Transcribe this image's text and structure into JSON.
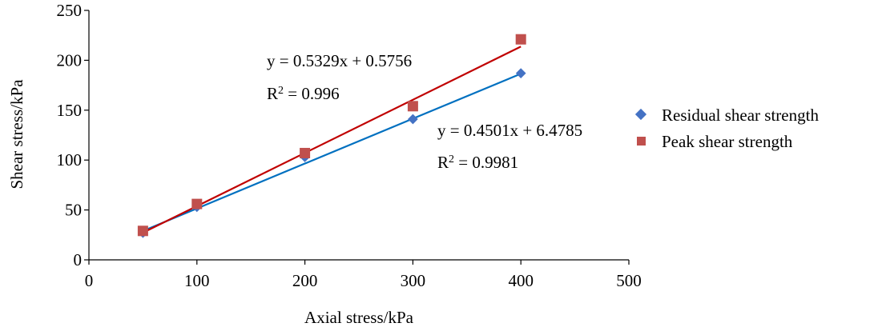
{
  "chart_data": {
    "type": "scatter",
    "xlabel": "Axial stress/kPa",
    "ylabel": "Shear stress/kPa",
    "xlim": [
      0,
      500
    ],
    "ylim": [
      0,
      250
    ],
    "x_ticks": [
      "0",
      "100",
      "200",
      "300",
      "400",
      "500"
    ],
    "y_ticks": [
      "0",
      "50",
      "100",
      "150",
      "200",
      "250"
    ],
    "grid": false,
    "legend_position": "right",
    "series": [
      {
        "name": "Residual shear strength",
        "marker": "diamond",
        "color": "#4472C4",
        "trend_color": "#0070C0",
        "x": [
          50,
          100,
          200,
          300,
          400
        ],
        "y": [
          27,
          53,
          103,
          141,
          187
        ],
        "trendline": {
          "slope": 0.4501,
          "intercept": 6.4785
        },
        "equation_label": "y = 0.4501x + 6.4785",
        "r2_prefix": "R",
        "r2_sup": "2",
        "r2_value": " = 0.9981"
      },
      {
        "name": "Peak shear strength",
        "marker": "square",
        "color": "#C0504D",
        "trend_color": "#C00000",
        "x": [
          50,
          100,
          200,
          300,
          400
        ],
        "y": [
          29,
          56,
          107,
          154,
          221
        ],
        "trendline": {
          "slope": 0.5329,
          "intercept": 0.5756
        },
        "equation_label": "y = 0.5329x + 0.5756",
        "r2_prefix": "R",
        "r2_sup": "2",
        "r2_value": " = 0.996"
      }
    ]
  }
}
